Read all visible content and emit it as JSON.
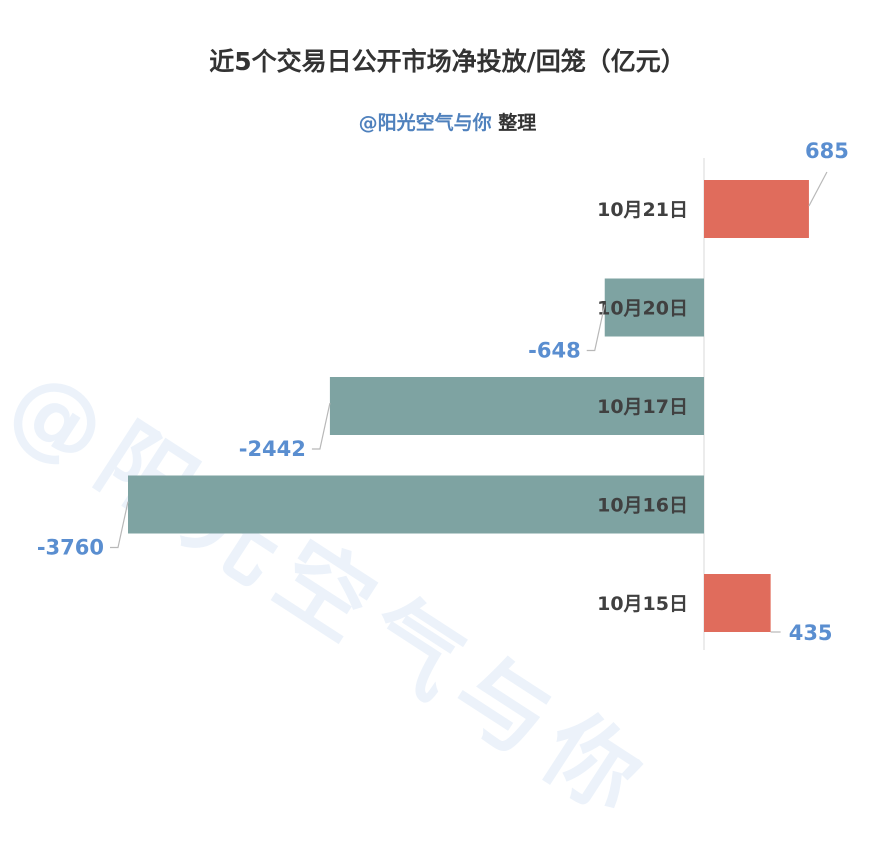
{
  "title": "近5个交易日公开市场净投放/回笼（亿元）",
  "subtitle": {
    "handle": "@阳光空气与你",
    "suffix": " 整理"
  },
  "watermark": "@阳光空气与你",
  "colors": {
    "positive": "#e06c5c",
    "negative": "#7ea3a2",
    "label": "#5a8ed0",
    "category": "#404040",
    "leader": "#b8b8b8",
    "axis": "#d9d9d9"
  },
  "chart_data": {
    "type": "bar",
    "orientation": "horizontal",
    "categories": [
      "10月21日",
      "10月20日",
      "10月17日",
      "10月16日",
      "10月15日"
    ],
    "values": [
      685,
      -648,
      -2442,
      -3760,
      435
    ],
    "title": "近5个交易日公开市场净投放/回笼（亿元）",
    "xlabel": "",
    "ylabel": "",
    "grid": false,
    "legend": "none"
  }
}
